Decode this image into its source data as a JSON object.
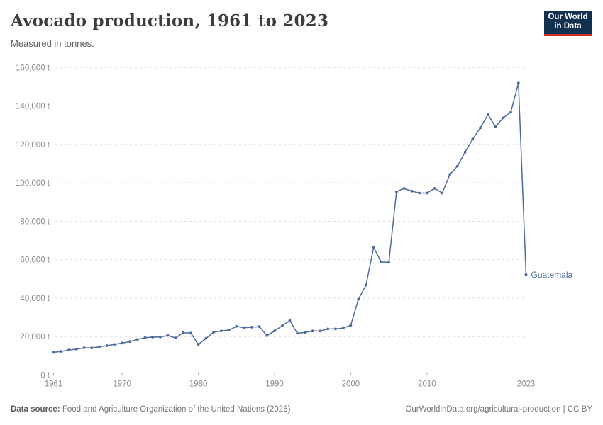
{
  "header": {
    "title": "Avocado production, 1961 to 2023",
    "subtitle": "Measured in tonnes."
  },
  "logo": {
    "line1": "Our World",
    "line2": "in Data",
    "bg_color": "#12304f",
    "accent_color": "#d42b21"
  },
  "footer": {
    "source_label": "Data source:",
    "source_text": " Food and Agriculture Organization of the United Nations (2025)",
    "link_text": "OurWorldinData.org/agricultural-production | CC BY"
  },
  "chart_data": {
    "type": "line",
    "title": "Avocado production, 1961 to 2023",
    "subtitle": "Measured in tonnes.",
    "unit": "t",
    "grid": "dashed-horizontal",
    "legend_position": "end-of-line-label",
    "xlabel": "",
    "ylabel": "",
    "xlim": [
      1961,
      2023
    ],
    "ylim": [
      0,
      160000
    ],
    "xticks": [
      1961,
      1970,
      1980,
      1990,
      2000,
      2010,
      2023
    ],
    "yticks": [
      0,
      20000,
      40000,
      60000,
      80000,
      100000,
      120000,
      140000,
      160000
    ],
    "colors": {
      "line": "#4C6A9C",
      "grid": "#dedede",
      "axis": "#a8a8a8",
      "tick_label": "#8b8b8b"
    },
    "series": [
      {
        "name": "Guatemala",
        "x": [
          1961,
          1962,
          1963,
          1964,
          1965,
          1966,
          1967,
          1968,
          1969,
          1970,
          1971,
          1972,
          1973,
          1974,
          1975,
          1976,
          1977,
          1978,
          1979,
          1980,
          1981,
          1982,
          1983,
          1984,
          1985,
          1986,
          1987,
          1988,
          1989,
          1990,
          1991,
          1992,
          1993,
          1994,
          1995,
          1996,
          1997,
          1998,
          1999,
          2000,
          2001,
          2002,
          2003,
          2004,
          2005,
          2006,
          2007,
          2008,
          2009,
          2010,
          2011,
          2012,
          2013,
          2014,
          2015,
          2016,
          2017,
          2018,
          2019,
          2020,
          2021,
          2022,
          2023
        ],
        "values": [
          11800,
          12300,
          13000,
          13500,
          14200,
          14100,
          14700,
          15300,
          15900,
          16600,
          17400,
          18500,
          19400,
          19700,
          19800,
          20600,
          19300,
          22000,
          21800,
          15900,
          19000,
          22300,
          22900,
          23400,
          25300,
          24600,
          24900,
          25200,
          20500,
          22900,
          25600,
          28300,
          21700,
          22200,
          22900,
          22900,
          24000,
          24000,
          24400,
          25900,
          39400,
          46800,
          66400,
          58800,
          58600,
          95400,
          97100,
          95700,
          94700,
          94700,
          97100,
          94700,
          104300,
          108700,
          116000,
          122700,
          128600,
          135500,
          129200,
          133800,
          136700,
          151900,
          52200
        ]
      }
    ]
  }
}
